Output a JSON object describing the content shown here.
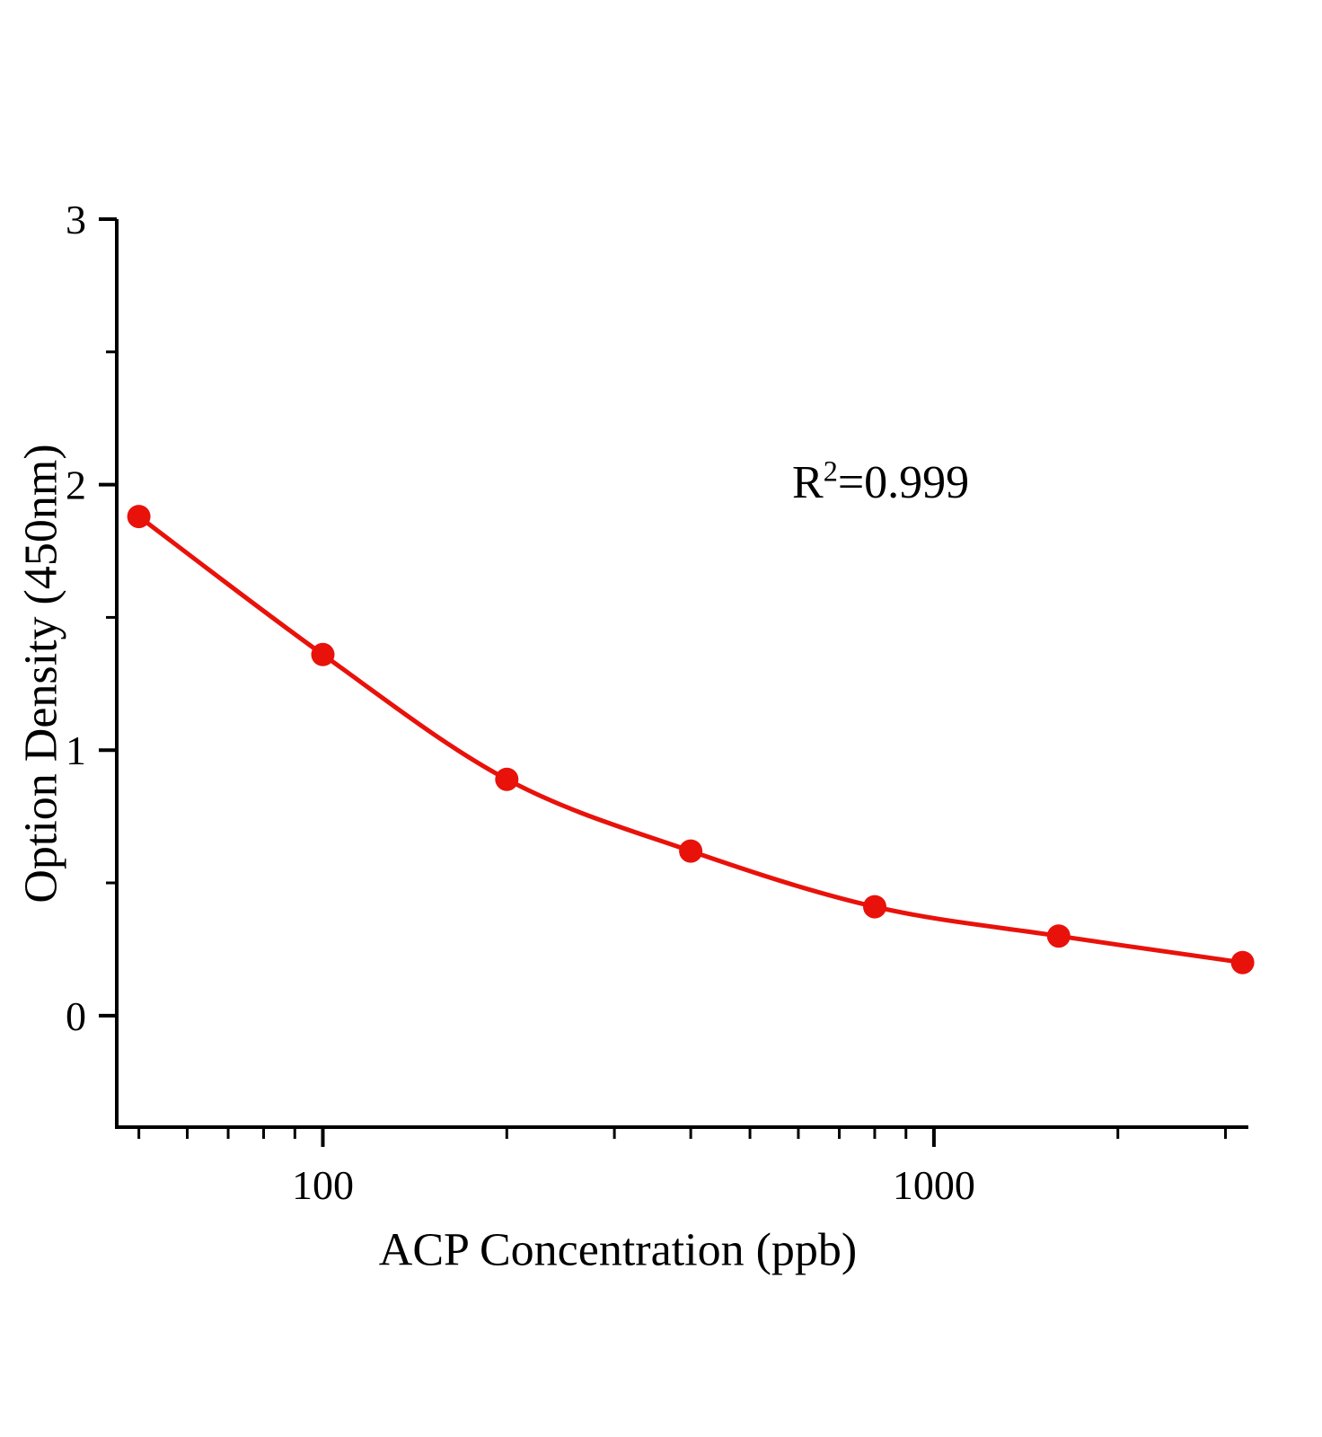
{
  "chart_data": {
    "type": "line",
    "title": "",
    "xlabel": "ACP Concentration（ppb）",
    "ylabel": "Option Density（450nm）",
    "x_scale": "log",
    "x": [
      50,
      100,
      200,
      400,
      800,
      1600,
      3200
    ],
    "y": [
      1.88,
      1.36,
      0.89,
      0.62,
      0.41,
      0.3,
      0.2
    ],
    "annotation": {
      "base": "R",
      "superscript": "2",
      "rest": "=0.999"
    },
    "xlim": [
      46,
      3270
    ],
    "ylim": [
      -0.42,
      3
    ],
    "y_major_ticks": [
      {
        "value": 0,
        "label": "0"
      },
      {
        "value": 1,
        "label": "1"
      },
      {
        "value": 2,
        "label": "2"
      },
      {
        "value": 3,
        "label": "3"
      }
    ],
    "y_minor_ticks": [
      0.5,
      1.5,
      2.5
    ],
    "x_major_ticks": [
      {
        "value": 100,
        "label": "100"
      },
      {
        "value": 1000,
        "label": "1000"
      }
    ],
    "x_minor_ticks": [
      50,
      60,
      70,
      80,
      90,
      200,
      300,
      400,
      500,
      600,
      700,
      800,
      900,
      2000,
      3000
    ],
    "grid": false,
    "legend": "none",
    "line_color": "#e8120b",
    "marker_color": "#e8120b",
    "marker_radius": 13,
    "axis_color": "#000000",
    "background": "#ffffff"
  }
}
